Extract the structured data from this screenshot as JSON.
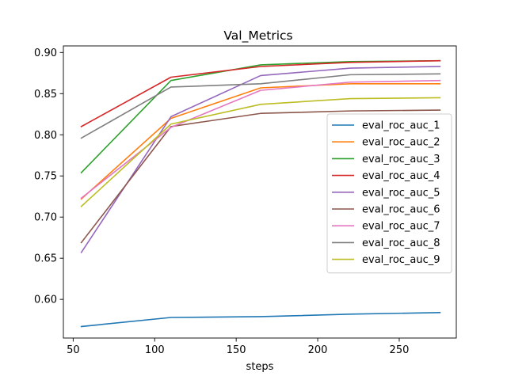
{
  "chart_data": {
    "type": "line",
    "title": "Val_Metrics",
    "xlabel": "steps",
    "ylabel": "",
    "xlim": [
      44,
      285
    ],
    "ylim": [
      0.553,
      0.908
    ],
    "xticks": [
      50,
      100,
      150,
      200,
      250
    ],
    "yticks": [
      0.6,
      0.65,
      0.7,
      0.75,
      0.8,
      0.85,
      0.9
    ],
    "xtick_labels": [
      "50",
      "100",
      "150",
      "200",
      "250"
    ],
    "ytick_labels": [
      "0.60",
      "0.65",
      "0.70",
      "0.75",
      "0.80",
      "0.85",
      "0.90"
    ],
    "grid": false,
    "legend_position": "center-right",
    "x": [
      55,
      110,
      165,
      220,
      275
    ],
    "series": [
      {
        "name": "eval_roc_auc_1",
        "color": "#1f77b4",
        "values": [
          0.567,
          0.578,
          0.579,
          0.582,
          0.584
        ]
      },
      {
        "name": "eval_roc_auc_2",
        "color": "#ff7f0e",
        "values": [
          0.722,
          0.82,
          0.857,
          0.862,
          0.862
        ]
      },
      {
        "name": "eval_roc_auc_3",
        "color": "#2ca02c",
        "values": [
          0.754,
          0.866,
          0.885,
          0.889,
          0.89
        ]
      },
      {
        "name": "eval_roc_auc_4",
        "color": "#d62728",
        "values": [
          0.81,
          0.87,
          0.883,
          0.888,
          0.89
        ]
      },
      {
        "name": "eval_roc_auc_5",
        "color": "#9467bd",
        "values": [
          0.657,
          0.822,
          0.872,
          0.881,
          0.883
        ]
      },
      {
        "name": "eval_roc_auc_6",
        "color": "#8c564b",
        "values": [
          0.669,
          0.81,
          0.826,
          0.829,
          0.83
        ]
      },
      {
        "name": "eval_roc_auc_7",
        "color": "#e377c2",
        "values": [
          0.723,
          0.809,
          0.854,
          0.864,
          0.866
        ]
      },
      {
        "name": "eval_roc_auc_8",
        "color": "#7f7f7f",
        "values": [
          0.796,
          0.858,
          0.862,
          0.873,
          0.874
        ]
      },
      {
        "name": "eval_roc_auc_9",
        "color": "#bcbd22",
        "values": [
          0.713,
          0.813,
          0.837,
          0.844,
          0.845
        ]
      }
    ]
  }
}
